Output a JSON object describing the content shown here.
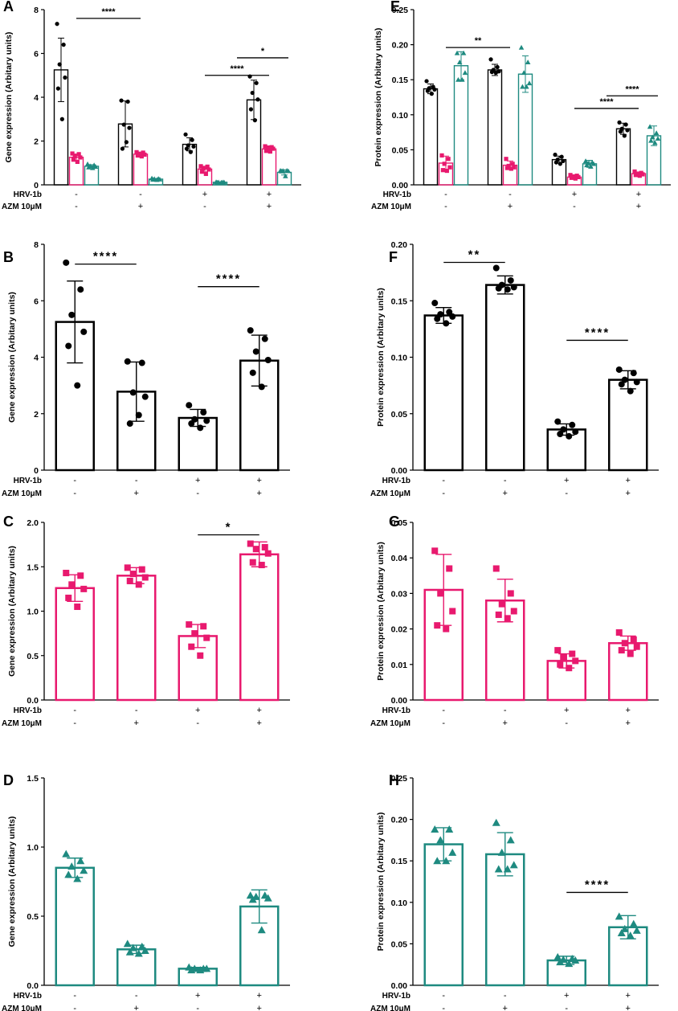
{
  "figure": {
    "colors": {
      "black": "#000000",
      "pink": "#e8196e",
      "teal": "#1e8a80"
    },
    "row_labels": [
      "HRV-1b",
      "AZM 10μM"
    ],
    "row_values": [
      [
        "-",
        "-",
        "+",
        "+"
      ],
      [
        "-",
        "+",
        "-",
        "+"
      ]
    ]
  },
  "chart_data": [
    {
      "panel": "A",
      "type": "bar",
      "ylabel": "Gene expression (Arbitary units)",
      "ylim": [
        0,
        8
      ],
      "yticks": [
        "0",
        "2",
        "4",
        "6",
        "8"
      ],
      "categories": [
        "HRV-1b - / AZM -",
        "HRV-1b - / AZM +",
        "HRV-1b + / AZM -",
        "HRV-1b + / AZM +"
      ],
      "series": [
        {
          "name": "black",
          "color": "#000000",
          "marker": "circle",
          "values": [
            5.25,
            2.78,
            1.85,
            3.88
          ],
          "errors": [
            1.45,
            1.05,
            0.3,
            0.9
          ],
          "points": [
            [
              7.35,
              6.4,
              5.5,
              4.9,
              4.4,
              3.0
            ],
            [
              3.85,
              3.8,
              2.75,
              2.6,
              1.65,
              1.95
            ],
            [
              2.3,
              2.05,
              1.8,
              1.75,
              1.65,
              1.5
            ],
            [
              4.95,
              4.65,
              4.2,
              3.9,
              3.45,
              2.95
            ]
          ]
        },
        {
          "name": "pink",
          "color": "#e8196e",
          "marker": "square",
          "values": [
            1.26,
            1.4,
            0.72,
            1.64
          ],
          "errors": [
            0.15,
            0.09,
            0.13,
            0.14
          ],
          "points": [
            [
              1.43,
              1.4,
              1.3,
              1.25,
              1.15,
              1.05
            ],
            [
              1.49,
              1.47,
              1.42,
              1.38,
              1.34,
              1.3
            ],
            [
              0.85,
              0.83,
              0.75,
              0.7,
              0.6,
              0.5
            ],
            [
              1.76,
              1.72,
              1.7,
              1.65,
              1.55,
              1.52
            ]
          ]
        },
        {
          "name": "teal",
          "color": "#1e8a80",
          "marker": "triangle",
          "values": [
            0.85,
            0.26,
            0.12,
            0.57
          ],
          "errors": [
            0.07,
            0.03,
            0.01,
            0.12
          ],
          "points": [
            [
              0.95,
              0.9,
              0.86,
              0.83,
              0.8,
              0.77
            ],
            [
              0.3,
              0.28,
              0.27,
              0.25,
              0.24,
              0.23
            ],
            [
              0.13,
              0.12,
              0.12,
              0.12,
              0.11,
              0.11
            ],
            [
              0.65,
              0.65,
              0.64,
              0.63,
              0.62,
              0.4
            ]
          ]
        }
      ],
      "sig": [
        {
          "from": 0,
          "to": 1,
          "label": "****",
          "y": 7.6
        },
        {
          "from": 2,
          "to": 3,
          "label": "****",
          "y": 5.0
        },
        {
          "from": 2.5,
          "to": 3.3,
          "label": "*",
          "y": 5.8
        }
      ]
    },
    {
      "panel": "E",
      "type": "bar",
      "ylabel": "Protein expression (Arbitary units)",
      "ylim": [
        0,
        0.25
      ],
      "yticks": [
        "0.00",
        "0.05",
        "0.10",
        "0.15",
        "0.20",
        "0.25"
      ],
      "categories": [
        "HRV-1b - / AZM -",
        "HRV-1b - / AZM +",
        "HRV-1b + / AZM -",
        "HRV-1b + / AZM +"
      ],
      "series": [
        {
          "name": "black",
          "color": "#000000",
          "marker": "circle",
          "values": [
            0.137,
            0.164,
            0.036,
            0.08
          ],
          "errors": [
            0.007,
            0.008,
            0.005,
            0.008
          ],
          "points": [
            [
              0.148,
              0.14,
              0.138,
              0.136,
              0.134,
              0.13
            ],
            [
              0.179,
              0.168,
              0.164,
              0.162,
              0.161,
              0.16
            ],
            [
              0.043,
              0.04,
              0.036,
              0.034,
              0.032,
              0.03
            ],
            [
              0.089,
              0.086,
              0.08,
              0.078,
              0.076,
              0.07
            ]
          ]
        },
        {
          "name": "pink",
          "color": "#e8196e",
          "marker": "square",
          "values": [
            0.031,
            0.028,
            0.011,
            0.016
          ],
          "errors": [
            0.01,
            0.006,
            0.002,
            0.002
          ],
          "points": [
            [
              0.042,
              0.037,
              0.03,
              0.025,
              0.021,
              0.02
            ],
            [
              0.037,
              0.03,
              0.027,
              0.025,
              0.024,
              0.023
            ],
            [
              0.014,
              0.013,
              0.012,
              0.011,
              0.01,
              0.009
            ],
            [
              0.019,
              0.017,
              0.016,
              0.015,
              0.014,
              0.013
            ]
          ]
        },
        {
          "name": "teal",
          "color": "#1e8a80",
          "marker": "triangle",
          "values": [
            0.17,
            0.158,
            0.03,
            0.07
          ],
          "errors": [
            0.02,
            0.026,
            0.005,
            0.014
          ],
          "points": [
            [
              0.188,
              0.188,
              0.175,
              0.16,
              0.15,
              0.15
            ],
            [
              0.196,
              0.175,
              0.16,
              0.145,
              0.14,
              0.14
            ],
            [
              0.034,
              0.032,
              0.031,
              0.03,
              0.028,
              0.026
            ],
            [
              0.083,
              0.074,
              0.068,
              0.066,
              0.063,
              0.06
            ]
          ]
        }
      ],
      "sig": [
        {
          "from": 0,
          "to": 1,
          "label": "**",
          "y": 0.196
        },
        {
          "from": 2,
          "to": 3,
          "label": "****",
          "y": 0.109
        },
        {
          "from": 2.5,
          "to": 3.3,
          "label": "****",
          "y": 0.127
        }
      ]
    },
    {
      "panel": "B",
      "type": "bar",
      "color": "#000000",
      "marker": "circle",
      "ylabel": "Gene expression (Arbitary units)",
      "ylim": [
        0,
        8
      ],
      "yticks": [
        "0",
        "2",
        "4",
        "6",
        "8"
      ],
      "categories": [
        "HRV-1b - / AZM -",
        "HRV-1b - / AZM +",
        "HRV-1b + / AZM -",
        "HRV-1b + / AZM +"
      ],
      "values": [
        5.25,
        2.78,
        1.85,
        3.88
      ],
      "errors": [
        1.45,
        1.05,
        0.3,
        0.9
      ],
      "points": [
        [
          7.35,
          6.4,
          5.5,
          4.9,
          4.4,
          3.0
        ],
        [
          3.85,
          3.8,
          2.75,
          2.6,
          1.65,
          1.95
        ],
        [
          2.3,
          2.05,
          1.8,
          1.75,
          1.65,
          1.5
        ],
        [
          4.95,
          4.65,
          4.2,
          3.9,
          3.45,
          2.95
        ]
      ],
      "sig": [
        {
          "from": 0,
          "to": 1,
          "label": "****",
          "y": 7.3
        },
        {
          "from": 2,
          "to": 3,
          "label": "****",
          "y": 6.5
        }
      ]
    },
    {
      "panel": "F",
      "type": "bar",
      "color": "#000000",
      "marker": "circle",
      "ylabel": "Protein expression (Arbitary units)",
      "ylim": [
        0,
        0.2
      ],
      "yticks": [
        "0.00",
        "0.05",
        "0.10",
        "0.15",
        "0.20"
      ],
      "categories": [
        "HRV-1b - / AZM -",
        "HRV-1b - / AZM +",
        "HRV-1b + / AZM -",
        "HRV-1b + / AZM +"
      ],
      "values": [
        0.137,
        0.164,
        0.036,
        0.08
      ],
      "errors": [
        0.007,
        0.008,
        0.005,
        0.008
      ],
      "points": [
        [
          0.148,
          0.14,
          0.138,
          0.136,
          0.134,
          0.13
        ],
        [
          0.179,
          0.168,
          0.164,
          0.162,
          0.161,
          0.16
        ],
        [
          0.043,
          0.04,
          0.036,
          0.034,
          0.032,
          0.03
        ],
        [
          0.089,
          0.086,
          0.08,
          0.078,
          0.076,
          0.07
        ]
      ],
      "sig": [
        {
          "from": 0,
          "to": 1,
          "label": "**",
          "y": 0.184
        },
        {
          "from": 2,
          "to": 3,
          "label": "****",
          "y": 0.115
        }
      ]
    },
    {
      "panel": "C",
      "type": "bar",
      "color": "#e8196e",
      "marker": "square",
      "ylabel": "Gene expression (Arbitary units)",
      "ylim": [
        0,
        2
      ],
      "yticks": [
        "0.0",
        "0.5",
        "1.0",
        "1.5",
        "2.0"
      ],
      "categories": [
        "HRV-1b - / AZM -",
        "HRV-1b - / AZM +",
        "HRV-1b + / AZM -",
        "HRV-1b + / AZM +"
      ],
      "values": [
        1.26,
        1.4,
        0.72,
        1.64
      ],
      "errors": [
        0.15,
        0.09,
        0.13,
        0.14
      ],
      "points": [
        [
          1.43,
          1.4,
          1.3,
          1.25,
          1.15,
          1.05
        ],
        [
          1.49,
          1.47,
          1.42,
          1.38,
          1.34,
          1.3
        ],
        [
          0.85,
          0.83,
          0.75,
          0.7,
          0.6,
          0.5
        ],
        [
          1.76,
          1.72,
          1.7,
          1.65,
          1.55,
          1.52
        ]
      ],
      "sig": [
        {
          "from": 2,
          "to": 3,
          "label": "*",
          "y": 1.86
        }
      ]
    },
    {
      "panel": "G",
      "type": "bar",
      "color": "#e8196e",
      "marker": "square",
      "ylabel": "Protein expression (Arbitary units)",
      "ylim": [
        0,
        0.05
      ],
      "yticks": [
        "0.00",
        "0.01",
        "0.02",
        "0.03",
        "0.04",
        "0.05"
      ],
      "categories": [
        "HRV-1b - / AZM -",
        "HRV-1b - / AZM +",
        "HRV-1b + / AZM -",
        "HRV-1b + / AZM +"
      ],
      "values": [
        0.031,
        0.028,
        0.011,
        0.016
      ],
      "errors": [
        0.01,
        0.006,
        0.002,
        0.002
      ],
      "points": [
        [
          0.042,
          0.037,
          0.03,
          0.025,
          0.021,
          0.02
        ],
        [
          0.037,
          0.03,
          0.027,
          0.025,
          0.024,
          0.023
        ],
        [
          0.014,
          0.013,
          0.012,
          0.011,
          0.01,
          0.009
        ],
        [
          0.019,
          0.017,
          0.016,
          0.015,
          0.014,
          0.013
        ]
      ],
      "sig": []
    },
    {
      "panel": "D",
      "type": "bar",
      "color": "#1e8a80",
      "marker": "triangle",
      "ylabel": "Gene expression (Arbitary units)",
      "ylim": [
        0,
        1.5
      ],
      "yticks": [
        "0.0",
        "0.5",
        "1.0",
        "1.5"
      ],
      "categories": [
        "HRV-1b - / AZM -",
        "HRV-1b - / AZM +",
        "HRV-1b + / AZM -",
        "HRV-1b + / AZM +"
      ],
      "values": [
        0.85,
        0.26,
        0.12,
        0.57
      ],
      "errors": [
        0.07,
        0.03,
        0.01,
        0.12
      ],
      "points": [
        [
          0.95,
          0.9,
          0.86,
          0.83,
          0.8,
          0.77
        ],
        [
          0.3,
          0.28,
          0.27,
          0.25,
          0.24,
          0.23
        ],
        [
          0.13,
          0.12,
          0.12,
          0.12,
          0.11,
          0.11
        ],
        [
          0.65,
          0.65,
          0.64,
          0.63,
          0.62,
          0.4
        ]
      ],
      "sig": []
    },
    {
      "panel": "H",
      "type": "bar",
      "color": "#1e8a80",
      "marker": "triangle",
      "ylabel": "Protein expression (Arbitary units)",
      "ylim": [
        0,
        0.25
      ],
      "yticks": [
        "0.00",
        "0.05",
        "0.10",
        "0.15",
        "0.20",
        "0.25"
      ],
      "categories": [
        "HRV-1b - / AZM -",
        "HRV-1b - / AZM +",
        "HRV-1b + / AZM -",
        "HRV-1b + / AZM +"
      ],
      "values": [
        0.17,
        0.158,
        0.03,
        0.07
      ],
      "errors": [
        0.02,
        0.026,
        0.005,
        0.014
      ],
      "points": [
        [
          0.188,
          0.188,
          0.175,
          0.16,
          0.15,
          0.15
        ],
        [
          0.196,
          0.175,
          0.16,
          0.145,
          0.14,
          0.14
        ],
        [
          0.034,
          0.032,
          0.031,
          0.03,
          0.028,
          0.026
        ],
        [
          0.083,
          0.074,
          0.068,
          0.066,
          0.063,
          0.06
        ]
      ],
      "sig": [
        {
          "from": 2,
          "to": 3,
          "label": "****",
          "y": 0.112
        }
      ]
    }
  ]
}
